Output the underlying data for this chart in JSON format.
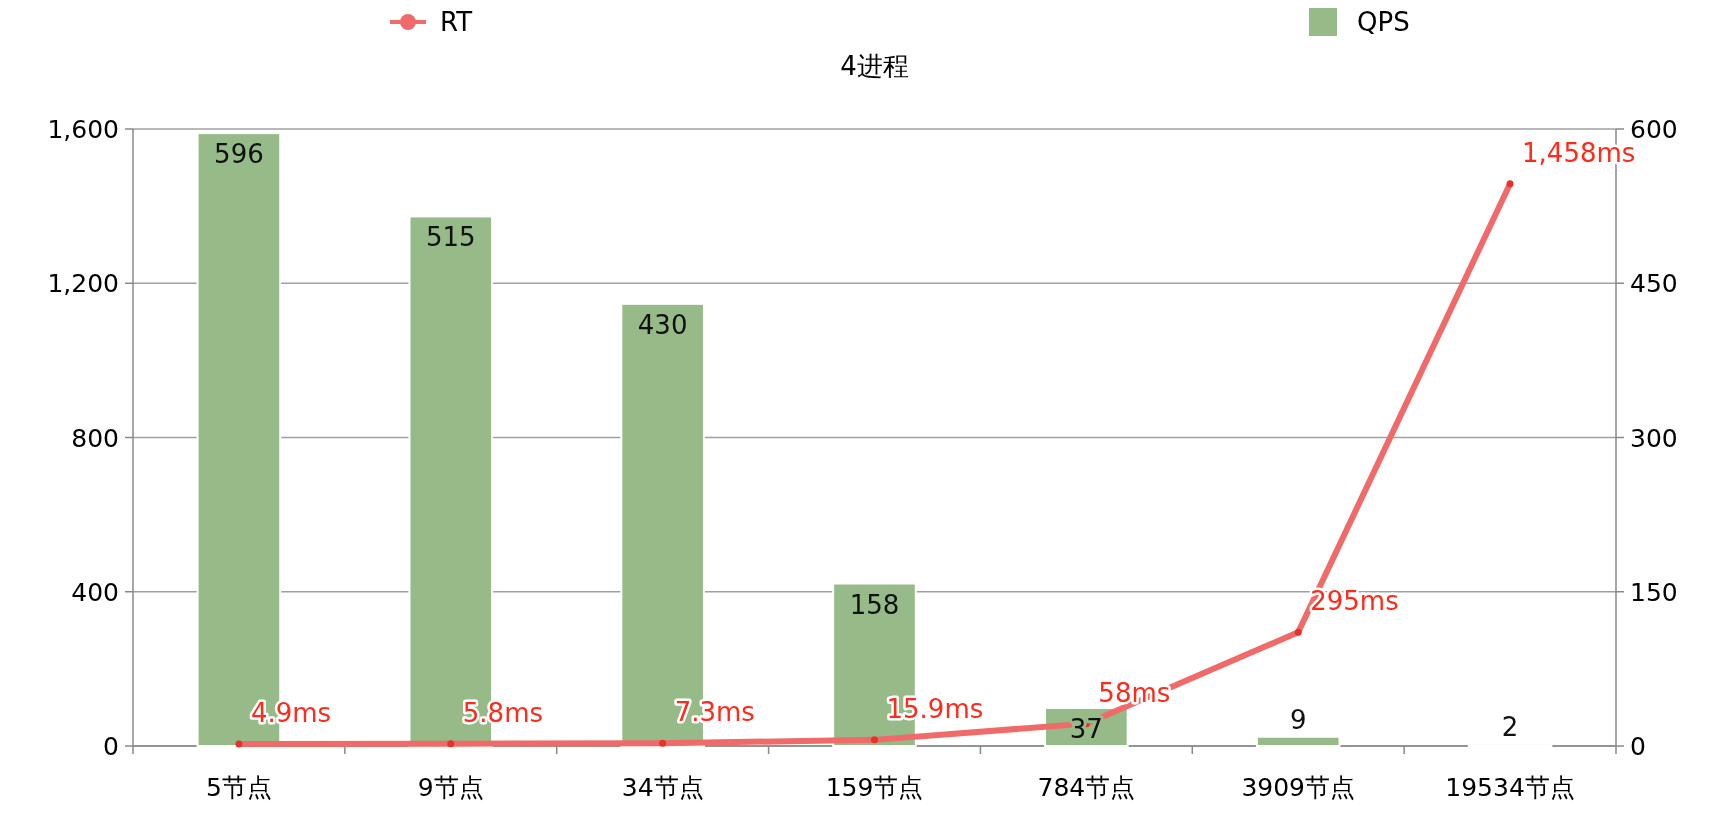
{
  "chart_data": {
    "type": "bar",
    "title": "4进程",
    "categories": [
      "5节点",
      "9节点",
      "34节点",
      "159节点",
      "784节点",
      "3909节点",
      "19534节点"
    ],
    "series": [
      {
        "name": "RT",
        "type": "line",
        "axis": "y",
        "color": "#f06a6a",
        "marker": "circle",
        "values": [
          4.9,
          5.8,
          7.3,
          15.9,
          58,
          295,
          1458
        ],
        "value_labels": [
          "4.9ms",
          "5.8ms",
          "7.3ms",
          "15.9ms",
          "58ms",
          "295ms",
          "1,458ms"
        ]
      },
      {
        "name": "QPS",
        "axis": "y2",
        "color": "#96bb88",
        "values": [
          596,
          515,
          430,
          158,
          37,
          9,
          2
        ],
        "value_labels": [
          "596",
          "515",
          "430",
          "158",
          "37",
          "9",
          "2"
        ]
      }
    ],
    "ylim": [
      0,
      1600
    ],
    "yticks": [
      0,
      {
        "value": 400,
        "label": "400"
      },
      {
        "value": 800,
        "label": "800"
      },
      {
        "value": 1200,
        "label": "1,200"
      },
      {
        "value": 1600,
        "label": "1,600"
      }
    ],
    "y2lim": [
      0,
      600
    ],
    "y2ticks": [
      0,
      150,
      300,
      450,
      600
    ],
    "grid": "y",
    "legend": "top"
  }
}
